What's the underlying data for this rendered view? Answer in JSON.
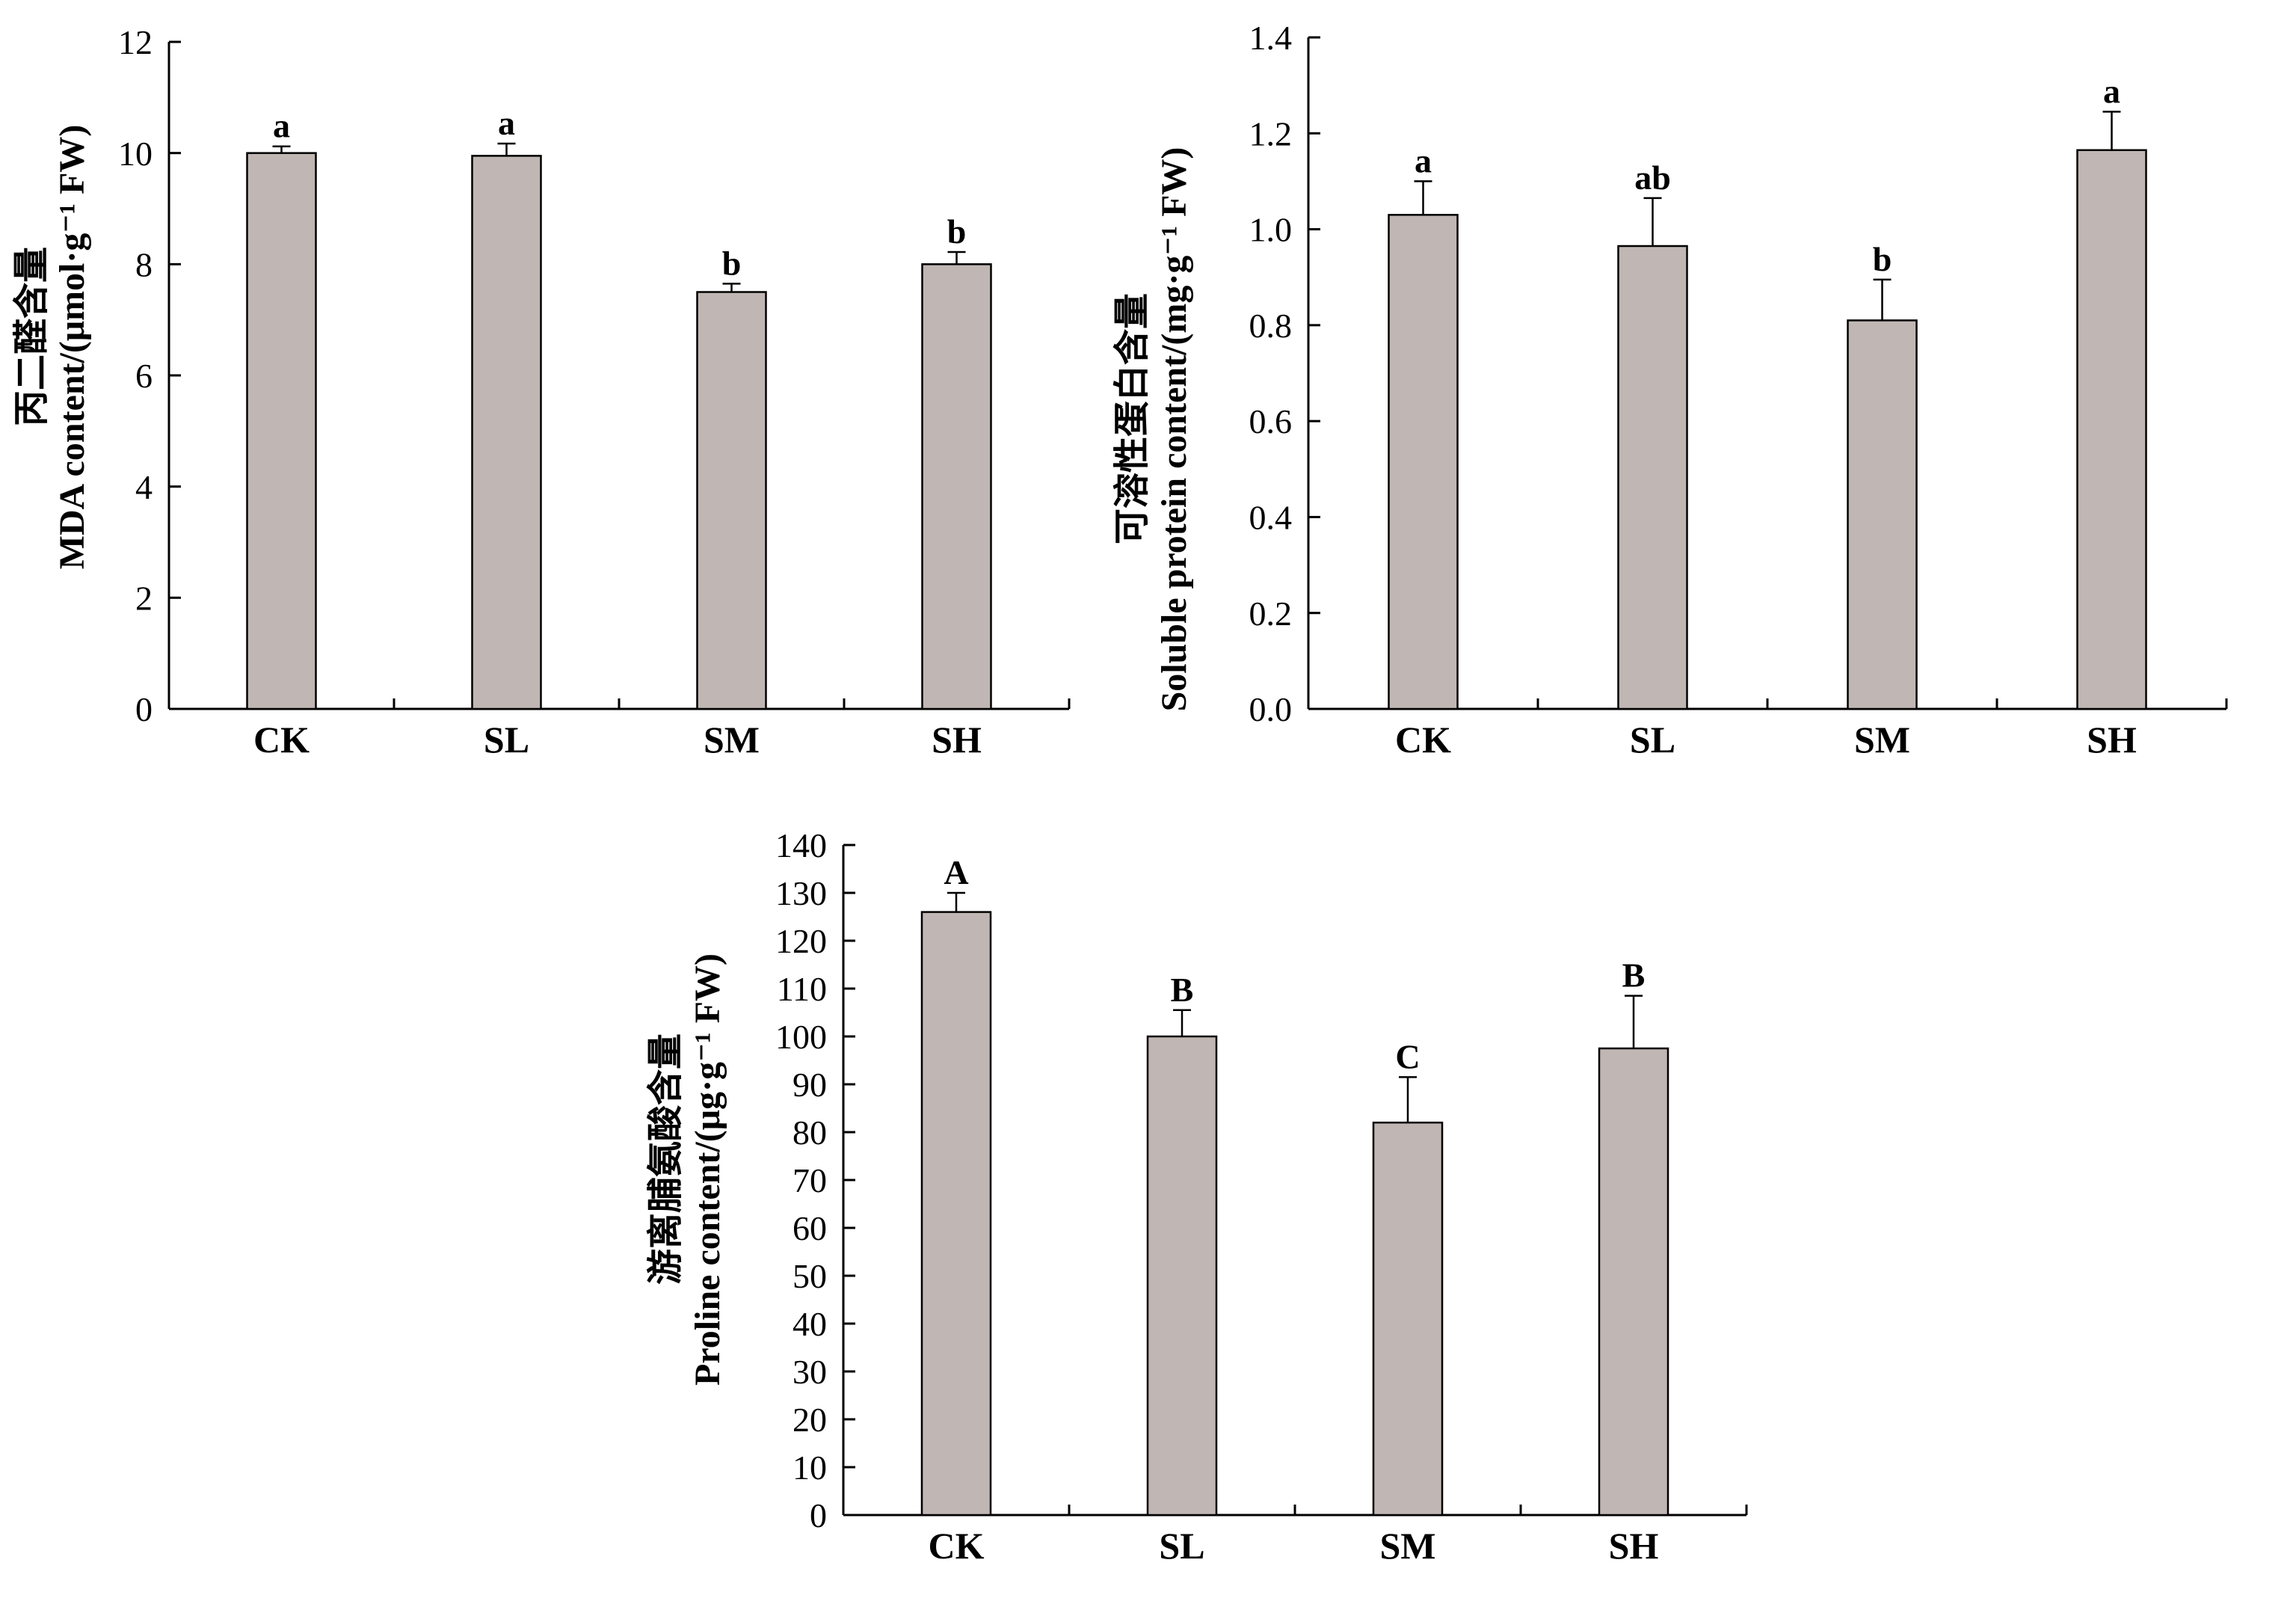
{
  "figure": {
    "bar_color": "#c0b6b3",
    "stroke_color": "#000000",
    "background": "#ffffff"
  },
  "chart_data": [
    {
      "id": "mda",
      "type": "bar",
      "categories": [
        "CK",
        "SL",
        "SM",
        "SH"
      ],
      "values": [
        10.0,
        9.95,
        7.5,
        8.0
      ],
      "errors": [
        0.12,
        0.22,
        0.15,
        0.22
      ],
      "significance": [
        "a",
        "a",
        "b",
        "b"
      ],
      "ylabel_cn": "丙二醛含量",
      "ylabel_en": "MDA content/(μmol·g⁻¹ FW)",
      "ylim": [
        0,
        12
      ],
      "yticks": [
        "0",
        "2",
        "4",
        "6",
        "8",
        "10",
        "12"
      ],
      "grid": false,
      "legend": "none"
    },
    {
      "id": "soluble-protein",
      "type": "bar",
      "categories": [
        "CK",
        "SL",
        "SM",
        "SH"
      ],
      "values": [
        1.03,
        0.965,
        0.81,
        1.165
      ],
      "errors": [
        0.07,
        0.1,
        0.085,
        0.08
      ],
      "significance": [
        "a",
        "ab",
        "b",
        "a"
      ],
      "ylabel_cn": "可溶性蛋白含量",
      "ylabel_en": "Soluble protein content/(mg·g⁻¹ FW)",
      "ylim": [
        0,
        1.4
      ],
      "yticks": [
        "0.0",
        "0.2",
        "0.4",
        "0.6",
        "0.8",
        "1.0",
        "1.2",
        "1.4"
      ],
      "grid": false,
      "legend": "none"
    },
    {
      "id": "proline",
      "type": "bar",
      "categories": [
        "CK",
        "SL",
        "SM",
        "SH"
      ],
      "values": [
        126,
        100,
        82,
        97.5
      ],
      "errors": [
        4,
        5.5,
        9.5,
        11
      ],
      "significance": [
        "A",
        "B",
        "C",
        "B"
      ],
      "ylabel_cn": "游离脯氨酸含量",
      "ylabel_en": "Proline content/(μg·g⁻¹ FW)",
      "ylim": [
        0,
        140
      ],
      "yticks": [
        "0",
        "10",
        "20",
        "30",
        "40",
        "50",
        "60",
        "70",
        "80",
        "90",
        "100",
        "110",
        "120",
        "130",
        "140"
      ],
      "grid": false,
      "legend": "none"
    }
  ]
}
